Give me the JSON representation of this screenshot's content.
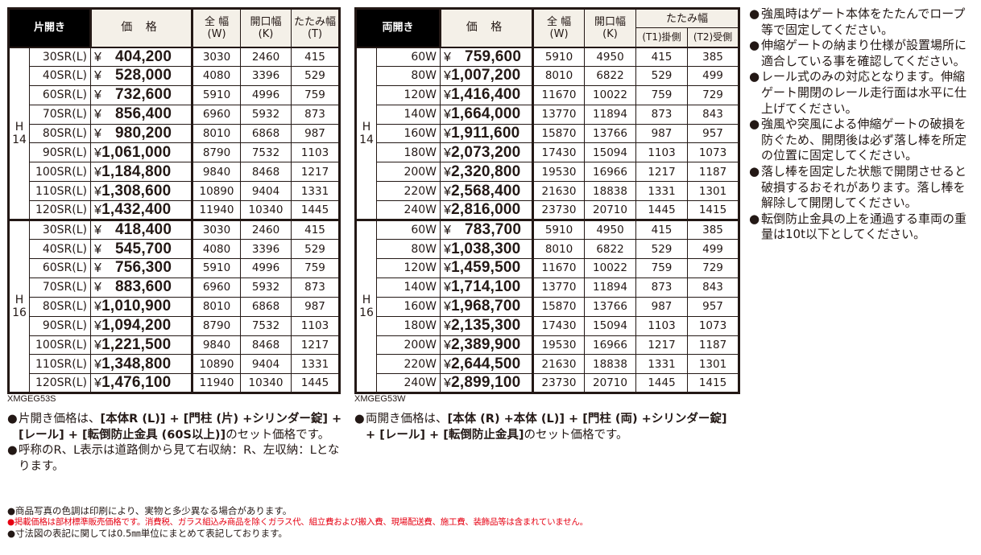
{
  "single_table": {
    "corner_label": "片開き",
    "headers": {
      "price": "価 格",
      "full_width": "全 幅",
      "full_width_sub": "(W)",
      "opening_width": "開口幅",
      "opening_width_sub": "(K)",
      "folded_width": "たたみ幅",
      "folded_width_sub": "(T)"
    },
    "groups": [
      {
        "height_label": "H 14",
        "rows": [
          {
            "model": "30SR(L)",
            "yen": "¥",
            "price": "404,200",
            "w": "3030",
            "k": "2460",
            "t": "415"
          },
          {
            "model": "40SR(L)",
            "yen": "¥",
            "price": "528,000",
            "w": "4080",
            "k": "3396",
            "t": "529"
          },
          {
            "model": "60SR(L)",
            "yen": "¥",
            "price": "732,600",
            "w": "5910",
            "k": "4996",
            "t": "759"
          },
          {
            "model": "70SR(L)",
            "yen": "¥",
            "price": "856,400",
            "w": "6960",
            "k": "5932",
            "t": "873"
          },
          {
            "model": "80SR(L)",
            "yen": "¥",
            "price": "980,200",
            "w": "8010",
            "k": "6868",
            "t": "987"
          },
          {
            "model": "90SR(L)",
            "yen": "¥",
            "price": "1,061,000",
            "w": "8790",
            "k": "7532",
            "t": "1103"
          },
          {
            "model": "100SR(L)",
            "yen": "¥",
            "price": "1,184,800",
            "w": "9840",
            "k": "8468",
            "t": "1217"
          },
          {
            "model": "110SR(L)",
            "yen": "¥",
            "price": "1,308,600",
            "w": "10890",
            "k": "9404",
            "t": "1331"
          },
          {
            "model": "120SR(L)",
            "yen": "¥",
            "price": "1,432,400",
            "w": "11940",
            "k": "10340",
            "t": "1445"
          }
        ]
      },
      {
        "height_label": "H 16",
        "rows": [
          {
            "model": "30SR(L)",
            "yen": "¥",
            "price": "418,400",
            "w": "3030",
            "k": "2460",
            "t": "415"
          },
          {
            "model": "40SR(L)",
            "yen": "¥",
            "price": "545,700",
            "w": "4080",
            "k": "3396",
            "t": "529"
          },
          {
            "model": "60SR(L)",
            "yen": "¥",
            "price": "756,300",
            "w": "5910",
            "k": "4996",
            "t": "759"
          },
          {
            "model": "70SR(L)",
            "yen": "¥",
            "price": "883,600",
            "w": "6960",
            "k": "5932",
            "t": "873"
          },
          {
            "model": "80SR(L)",
            "yen": "¥",
            "price": "1,010,900",
            "w": "8010",
            "k": "6868",
            "t": "987"
          },
          {
            "model": "90SR(L)",
            "yen": "¥",
            "price": "1,094,200",
            "w": "8790",
            "k": "7532",
            "t": "1103"
          },
          {
            "model": "100SR(L)",
            "yen": "¥",
            "price": "1,221,500",
            "w": "9840",
            "k": "8468",
            "t": "1217"
          },
          {
            "model": "110SR(L)",
            "yen": "¥",
            "price": "1,348,800",
            "w": "10890",
            "k": "9404",
            "t": "1331"
          },
          {
            "model": "120SR(L)",
            "yen": "¥",
            "price": "1,476,100",
            "w": "11940",
            "k": "10340",
            "t": "1445"
          }
        ]
      }
    ],
    "code": "XMGEG53S"
  },
  "double_table": {
    "corner_label": "両開き",
    "headers": {
      "price": "価 格",
      "full_width": "全 幅",
      "full_width_sub": "(W)",
      "opening_width": "開口幅",
      "opening_width_sub": "(K)",
      "folded_width": "たたみ幅",
      "t1": "(T1)掛側",
      "t2": "(T2)受側"
    },
    "groups": [
      {
        "height_label": "H 14",
        "rows": [
          {
            "model": "60W",
            "yen": "¥",
            "price": "759,600",
            "w": "5910",
            "k": "4950",
            "t1": "415",
            "t2": "385"
          },
          {
            "model": "80W",
            "yen": "¥",
            "price": "1,007,200",
            "w": "8010",
            "k": "6822",
            "t1": "529",
            "t2": "499"
          },
          {
            "model": "120W",
            "yen": "¥",
            "price": "1,416,400",
            "w": "11670",
            "k": "10022",
            "t1": "759",
            "t2": "729"
          },
          {
            "model": "140W",
            "yen": "¥",
            "price": "1,664,000",
            "w": "13770",
            "k": "11894",
            "t1": "873",
            "t2": "843"
          },
          {
            "model": "160W",
            "yen": "¥",
            "price": "1,911,600",
            "w": "15870",
            "k": "13766",
            "t1": "987",
            "t2": "957"
          },
          {
            "model": "180W",
            "yen": "¥",
            "price": "2,073,200",
            "w": "17430",
            "k": "15094",
            "t1": "1103",
            "t2": "1073"
          },
          {
            "model": "200W",
            "yen": "¥",
            "price": "2,320,800",
            "w": "19530",
            "k": "16966",
            "t1": "1217",
            "t2": "1187"
          },
          {
            "model": "220W",
            "yen": "¥",
            "price": "2,568,400",
            "w": "21630",
            "k": "18838",
            "t1": "1331",
            "t2": "1301"
          },
          {
            "model": "240W",
            "yen": "¥",
            "price": "2,816,000",
            "w": "23730",
            "k": "20710",
            "t1": "1445",
            "t2": "1415"
          }
        ]
      },
      {
        "height_label": "H 16",
        "rows": [
          {
            "model": "60W",
            "yen": "¥",
            "price": "783,700",
            "w": "5910",
            "k": "4950",
            "t1": "415",
            "t2": "385"
          },
          {
            "model": "80W",
            "yen": "¥",
            "price": "1,038,300",
            "w": "8010",
            "k": "6822",
            "t1": "529",
            "t2": "499"
          },
          {
            "model": "120W",
            "yen": "¥",
            "price": "1,459,500",
            "w": "11670",
            "k": "10022",
            "t1": "759",
            "t2": "729"
          },
          {
            "model": "140W",
            "yen": "¥",
            "price": "1,714,100",
            "w": "13770",
            "k": "11894",
            "t1": "873",
            "t2": "843"
          },
          {
            "model": "160W",
            "yen": "¥",
            "price": "1,968,700",
            "w": "15870",
            "k": "13766",
            "t1": "987",
            "t2": "957"
          },
          {
            "model": "180W",
            "yen": "¥",
            "price": "2,135,300",
            "w": "17430",
            "k": "15094",
            "t1": "1103",
            "t2": "1073"
          },
          {
            "model": "200W",
            "yen": "¥",
            "price": "2,389,900",
            "w": "19530",
            "k": "16966",
            "t1": "1217",
            "t2": "1187"
          },
          {
            "model": "220W",
            "yen": "¥",
            "price": "2,644,500",
            "w": "21630",
            "k": "18838",
            "t1": "1331",
            "t2": "1301"
          },
          {
            "model": "240W",
            "yen": "¥",
            "price": "2,899,100",
            "w": "23730",
            "k": "20710",
            "t1": "1445",
            "t2": "1415"
          }
        ]
      }
    ],
    "code": "XMGEG53W"
  },
  "single_notes": [
    {
      "bullet": "●",
      "pre": "片開き価格は、",
      "bold": "[本体R (L)] + [門柱 (片) +シリンダー錠] + [レール] + [転倒防止金具 (60S以上)]",
      "post": "のセット価格です。"
    },
    {
      "bullet": "●",
      "pre": "呼称のR、L表示は道路側から見て右収納：R、左収納：Lとなります。",
      "bold": "",
      "post": ""
    }
  ],
  "double_notes": [
    {
      "bullet": "●",
      "pre": "両開き価格は、",
      "bold": "[本体 (R) +本体 (L)] + [門柱 (両) +シリンダー錠] + [レール] + [転倒防止金具]",
      "post": "のセット価格です。"
    }
  ],
  "side_notes": [
    {
      "bullet": "●",
      "text": "強風時はゲート本体をたたんでロープ等で固定してください。"
    },
    {
      "bullet": "●",
      "text": "伸縮ゲートの納まり仕様が設置場所に適合している事を確認してください。"
    },
    {
      "bullet": "●",
      "text": "レール式のみの対応となります。伸縮ゲート開閉のレール走行面は水平に仕上げてください。"
    },
    {
      "bullet": "●",
      "text": "強風や突風による伸縮ゲートの破損を防ぐため、開閉後は必ず落し棒を所定の位置に固定してください。"
    },
    {
      "bullet": "●",
      "text": "落し棒を固定した状態で開閉させると破損するおそれがあります。落し棒を解除して開閉してください。"
    },
    {
      "bullet": "●",
      "text": "転倒防止金具の上を通過する車両の重量は10t以下としてください。"
    }
  ],
  "footer_notes": [
    {
      "bullet": "●",
      "text": "商品写真の色調は印刷により、実物と多少異なる場合があります。",
      "color": "#231815"
    },
    {
      "bullet": "●",
      "text": "掲載価格は部材標準販売価格です。消費税、ガラス組込み商品を除くガラス代、組立費および搬入費、現場配送費、施工費、装飾品等は含まれていません。",
      "color": "#e60012"
    },
    {
      "bullet": "●",
      "text": "寸法図の表記に関しては0.5㎜単位にまとめて表記しております。",
      "color": "#231815"
    }
  ],
  "colors": {
    "text": "#231815",
    "header_bg": "#f4f0e8",
    "corner_bg": "#000000",
    "warning_red": "#e60012"
  }
}
